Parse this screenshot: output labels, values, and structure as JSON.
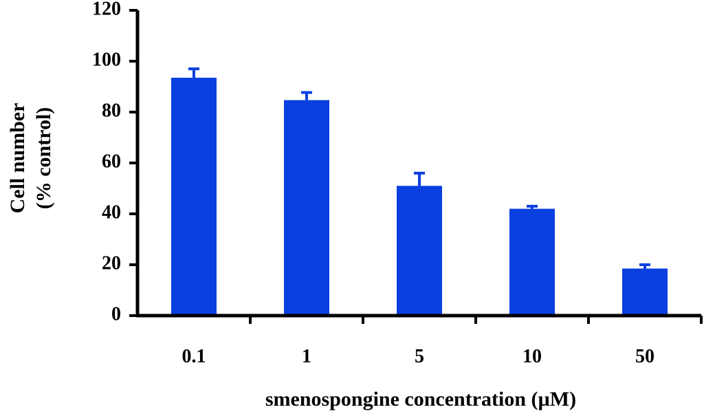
{
  "chart_data": {
    "type": "bar",
    "categories": [
      "0.1",
      "1",
      "5",
      "10",
      "50"
    ],
    "series": [
      {
        "values": [
          93.5,
          84.7,
          51,
          42,
          18.5
        ],
        "errors": [
          3.5,
          3.0,
          5.0,
          1.0,
          1.5
        ]
      }
    ],
    "title": "",
    "xlabel": "smenospongine concentration (µM)",
    "ylabel_line1": "Cell number",
    "ylabel_line2": "(% control)",
    "ylim": [
      0,
      120
    ],
    "yticks": [
      "0",
      "20",
      "40",
      "60",
      "80",
      "100",
      "120"
    ],
    "grid": false,
    "legend": "none",
    "bar_color": "#0a3fe0",
    "axis_color": "#000000"
  }
}
